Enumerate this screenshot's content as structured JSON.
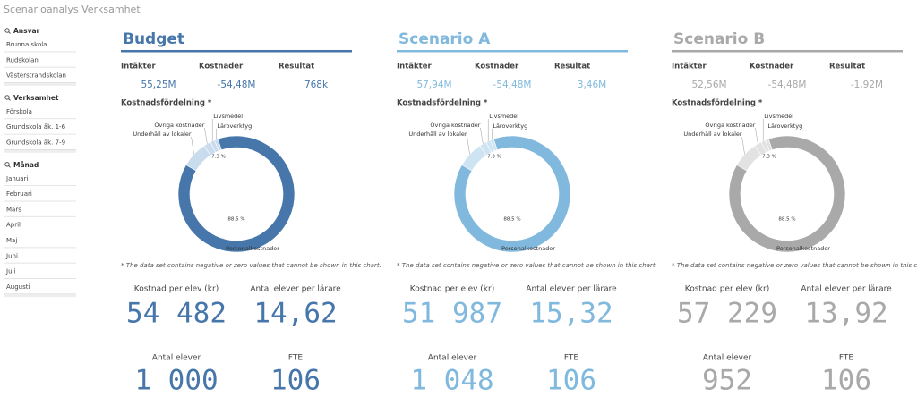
{
  "header": {
    "title": "Scenarioanalys Verksamhet"
  },
  "filters": [
    {
      "title": "Ansvar",
      "items": [
        "Brunna skola",
        "Rudskolan",
        "Västerstrandskolan"
      ]
    },
    {
      "title": "Verksamhet",
      "items": [
        "Förskola",
        "Grundskola åk. 1-6",
        "Grundskola åk. 7-9"
      ]
    },
    {
      "title": "Månad",
      "items": [
        "Januari",
        "Februari",
        "Mars",
        "April",
        "Maj",
        "Juni",
        "Juli",
        "Augusti"
      ]
    }
  ],
  "panels": [
    {
      "title": "Budget",
      "color": "#4676aa",
      "light": "#c9dcee",
      "kpis": [
        {
          "label": "Intäkter",
          "value": "55,25M"
        },
        {
          "label": "Kostnader",
          "value": "-54,48M"
        },
        {
          "label": "Resultat",
          "value": "768k"
        }
      ],
      "chart": {
        "title": "Kostnadsfördelning *",
        "note": "* The data set contains negative or zero values that cannot be shown in this chart.",
        "segments": [
          {
            "name": "Underhåll av lokaler",
            "value": 7.3,
            "label": "7.3 %"
          },
          {
            "name": "Övriga kostnader",
            "value": 2
          },
          {
            "name": "Livsmedel",
            "value": 1.2
          },
          {
            "name": "Läroverktyg",
            "value": 1
          },
          {
            "name": "Personalkostnader",
            "value": 88.5,
            "label": "88.5 %"
          }
        ]
      },
      "stats": [
        {
          "label": "Kostnad per elev (kr)",
          "value": "54 482"
        },
        {
          "label": "Antal elever per lärare",
          "value": "14,62"
        },
        {
          "label": "Antal elever",
          "value": "1 000"
        },
        {
          "label": "FTE",
          "value": "106"
        }
      ]
    },
    {
      "title": "Scenario A",
      "color": "#80b9dd",
      "light": "#cfe4f3",
      "kpis": [
        {
          "label": "Intäkter",
          "value": "57,94M"
        },
        {
          "label": "Kostnader",
          "value": "-54,48M"
        },
        {
          "label": "Resultat",
          "value": "3,46M"
        }
      ],
      "chart": {
        "title": "Kostnadsfördelning *",
        "note": "* The data set contains negative or zero values that cannot be shown in this chart.",
        "segments": [
          {
            "name": "Underhåll av lokaler",
            "value": 7.3,
            "label": "7.3 %"
          },
          {
            "name": "Övriga kostnader",
            "value": 2
          },
          {
            "name": "Livsmedel",
            "value": 1.2
          },
          {
            "name": "Läroverktyg",
            "value": 1
          },
          {
            "name": "Personalkostnader",
            "value": 88.5,
            "label": "88.5 %"
          }
        ]
      },
      "stats": [
        {
          "label": "Kostnad per elev (kr)",
          "value": "51 987"
        },
        {
          "label": "Antal elever per lärare",
          "value": "15,32"
        },
        {
          "label": "Antal elever",
          "value": "1 048"
        },
        {
          "label": "FTE",
          "value": "106"
        }
      ]
    },
    {
      "title": "Scenario B",
      "color": "#a9a9a9",
      "light": "#e2e2e2",
      "kpis": [
        {
          "label": "Intäkter",
          "value": "52,56M"
        },
        {
          "label": "Kostnader",
          "value": "-54,48M"
        },
        {
          "label": "Resultat",
          "value": "-1,92M"
        }
      ],
      "chart": {
        "title": "Kostnadsfördelning *",
        "note": "* The data set contains negative or zero values that cannot be shown in this chart.",
        "segments": [
          {
            "name": "Underhåll av lokaler",
            "value": 7.3,
            "label": "7.3 %"
          },
          {
            "name": "Övriga kostnader",
            "value": 2
          },
          {
            "name": "Livsmedel",
            "value": 1.2
          },
          {
            "name": "Läroverktyg",
            "value": 1
          },
          {
            "name": "Personalkostnader",
            "value": 88.5,
            "label": "88.5 %"
          }
        ]
      },
      "stats": [
        {
          "label": "Kostnad per elev (kr)",
          "value": "57 229"
        },
        {
          "label": "Antal elever per lärare",
          "value": "13,92"
        },
        {
          "label": "Antal elever",
          "value": "952"
        },
        {
          "label": "FTE",
          "value": "106"
        }
      ]
    }
  ]
}
